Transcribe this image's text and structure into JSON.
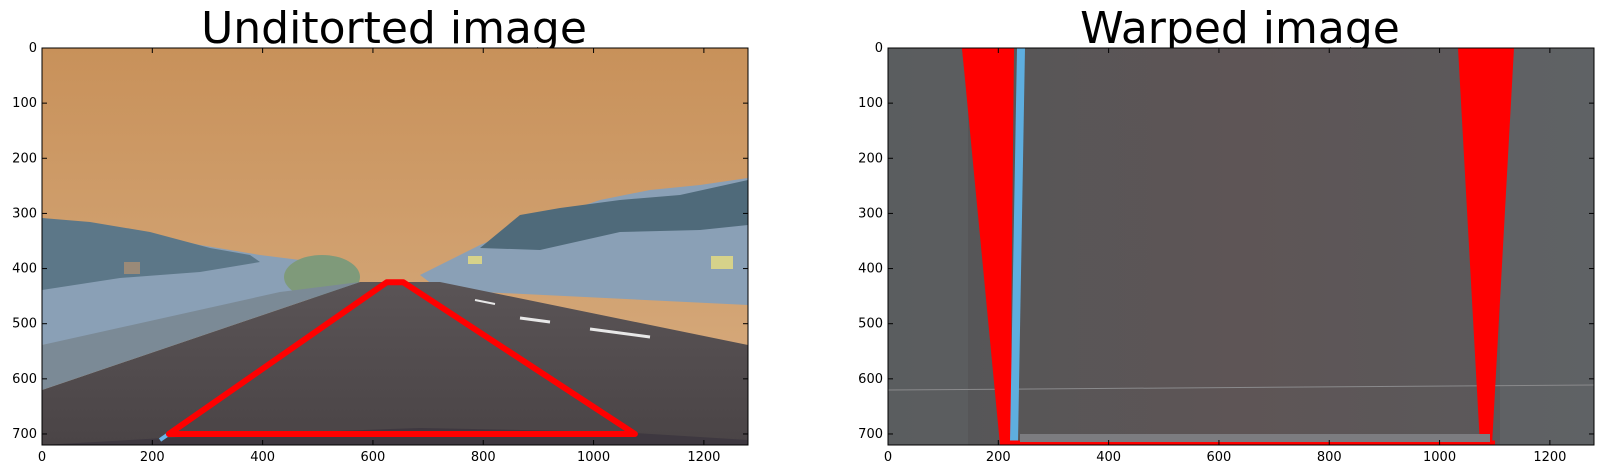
{
  "panels": [
    {
      "title": "Unditorted image",
      "xlim": [
        0,
        1280
      ],
      "ylim": [
        720,
        0
      ],
      "xticks": [
        0,
        200,
        400,
        600,
        800,
        1000,
        1200
      ],
      "yticks": [
        0,
        100,
        200,
        300,
        400,
        500,
        600,
        700
      ]
    },
    {
      "title": "Warped image",
      "xlim": [
        0,
        1280
      ],
      "ylim": [
        720,
        0
      ],
      "xticks": [
        0,
        200,
        400,
        600,
        800,
        1000,
        1200
      ],
      "yticks": [
        0,
        100,
        200,
        300,
        400,
        500,
        600,
        700
      ]
    }
  ],
  "chart_data": [
    {
      "type": "image",
      "title": "Unditorted image",
      "xlim": [
        0,
        1280
      ],
      "ylim": [
        720,
        0
      ],
      "overlay_polygon": {
        "color": "#ff0000",
        "points": [
          [
            230,
            700
          ],
          [
            625,
            425
          ],
          [
            655,
            425
          ],
          [
            1075,
            700
          ]
        ]
      }
    },
    {
      "type": "image",
      "title": "Warped image",
      "xlim": [
        0,
        1280
      ],
      "ylim": [
        720,
        0
      ],
      "overlay_color": "#ff0000"
    }
  ]
}
